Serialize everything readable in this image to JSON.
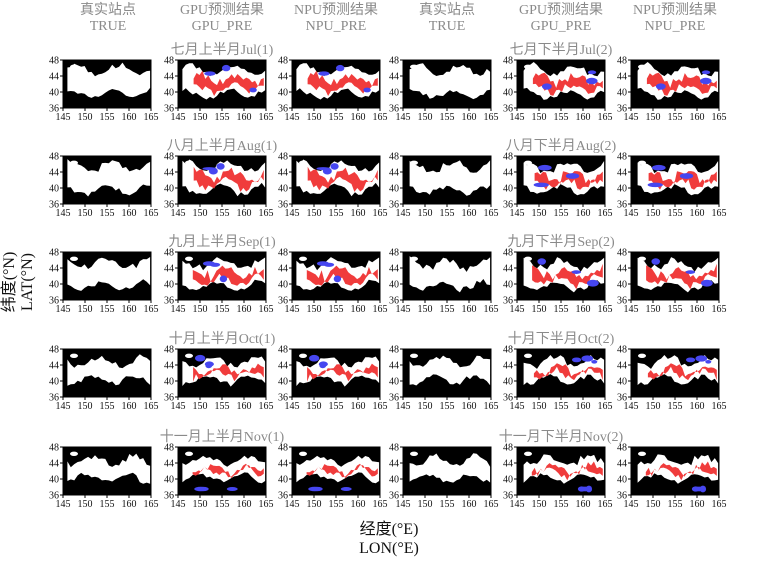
{
  "chart_data": {
    "type": "heatmap",
    "column_titles": [
      [
        "真实站点",
        "TRUE"
      ],
      [
        "GPU预测结果",
        "GPU_PRE"
      ],
      [
        "NPU预测结果",
        "NPU_PRE"
      ],
      [
        "真实站点",
        "TRUE"
      ],
      [
        "GPU预测结果",
        "GPU_PRE"
      ],
      [
        "NPU预测结果",
        "NPU_PRE"
      ]
    ],
    "row_titles": [
      [
        "七月上半月Jul(1)",
        "七月下半月Jul(2)"
      ],
      [
        "八月上半月Aug(1)",
        "八月下半月Aug(2)"
      ],
      [
        "九月上半月Sep(1)",
        "九月下半月Sep(2)"
      ],
      [
        "十月上半月Oct(1)",
        "十月下半月Oct(2)"
      ],
      [
        "十一月上半月Nov(1)",
        "十一月下半月Nov(2)"
      ]
    ],
    "xticks": [
      "145",
      "150",
      "155",
      "160",
      "165"
    ],
    "xlim": [
      145,
      165
    ],
    "yticks": [
      "48",
      "44",
      "40",
      "36"
    ],
    "ylim": [
      36,
      48
    ],
    "ylabel": [
      "纬度(°N)",
      "LAT(°N)"
    ],
    "xlabel": [
      "经度(°E)",
      "LON(°E)"
    ],
    "colors": {
      "background": "#000000",
      "true_region": "#ffffff",
      "red": "#f03c3c",
      "blue": "#4646f0"
    }
  }
}
